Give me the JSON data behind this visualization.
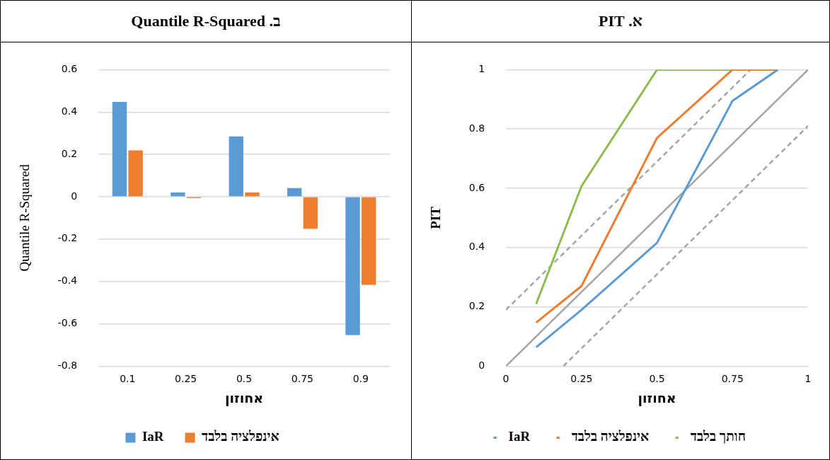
{
  "chart_data": [
    {
      "type": "line",
      "title": "א. PIT",
      "xlabel": "אחוזון",
      "ylabel": "PIT",
      "x": [
        0.1,
        0.25,
        0.5,
        0.75,
        0.9
      ],
      "xlim": [
        0,
        1
      ],
      "xticks": [
        0,
        0.25,
        0.5,
        0.75,
        1
      ],
      "ylim": [
        0,
        1
      ],
      "yticks": [
        0,
        0.2,
        0.4,
        0.6,
        0.8,
        1
      ],
      "grid": "y",
      "legend": "bottom",
      "marker": "none",
      "series": [
        {
          "name": "IaR",
          "color": "#5b9bd5",
          "values": [
            0.064,
            0.19,
            0.416,
            0.895,
            1
          ]
        },
        {
          "name": "אינפלציה בלבד",
          "color": "#ed7d31",
          "values": [
            0.147,
            0.27,
            0.77,
            1,
            1
          ]
        },
        {
          "name": "חותך בלבד",
          "color": "#8fbc4f",
          "values": [
            0.21,
            0.607,
            1,
            1,
            1
          ]
        },
        {
          "color": "#a5a5a5",
          "x": [
            0,
            1
          ],
          "values": [
            0,
            1
          ],
          "line_style": "solid"
        },
        {
          "color": "#a5a5a5",
          "x": [
            0,
            0.81
          ],
          "values": [
            0.19,
            1
          ],
          "line_style": "dashed"
        },
        {
          "color": "#a5a5a5",
          "x": [
            0.19,
            1
          ],
          "values": [
            0,
            0.81
          ],
          "line_style": "dashed"
        }
      ]
    },
    {
      "type": "bar",
      "title": "ב. Quantile R-Squared",
      "xlabel": "אחוזון",
      "ylabel": "Quantile R-Squared",
      "categories": [
        "0.1",
        "0.25",
        "0.5",
        "0.75",
        "0.9"
      ],
      "ylim": [
        -0.8,
        0.6
      ],
      "yticks": [
        -0.8,
        -0.6,
        -0.4,
        -0.2,
        0,
        0.2,
        0.4,
        0.6
      ],
      "grid": "y",
      "legend": "bottom",
      "series": [
        {
          "name": "IaR",
          "color": "#5b9bd5",
          "values": [
            0.448,
            0.02,
            0.285,
            0.041,
            -0.653
          ]
        },
        {
          "name": "אינפלציה בלבד",
          "color": "#ed7d31",
          "values": [
            0.219,
            -0.007,
            0.02,
            -0.151,
            -0.416
          ]
        }
      ]
    }
  ]
}
